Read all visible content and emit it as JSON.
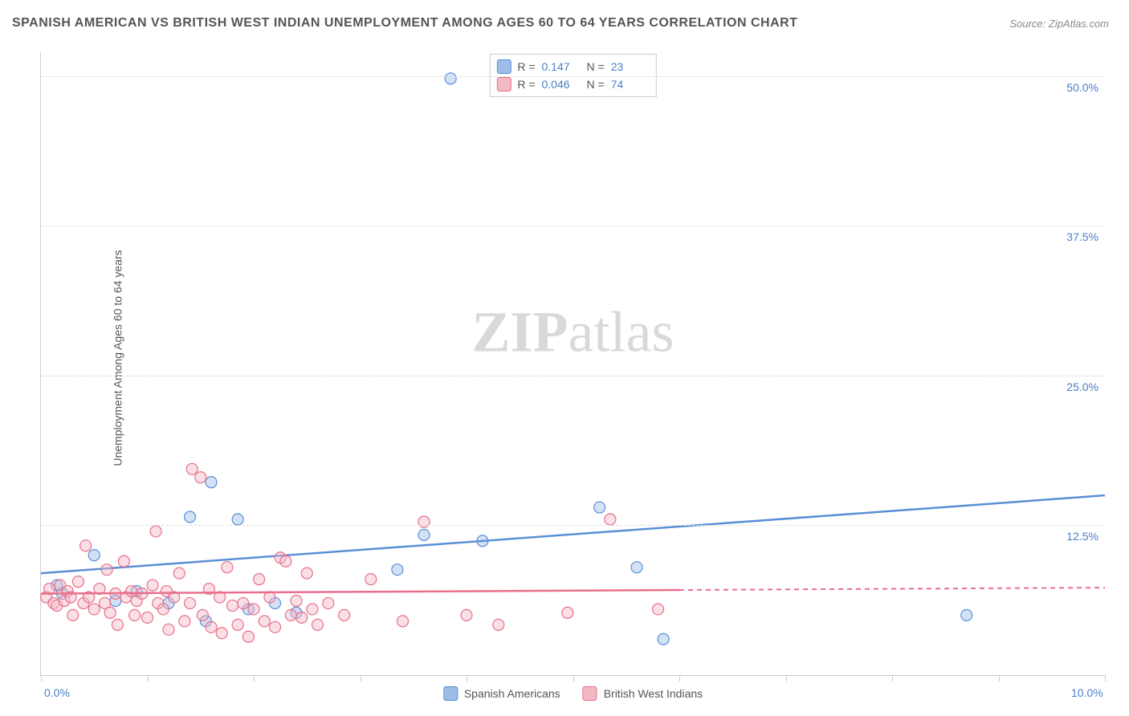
{
  "title": "SPANISH AMERICAN VS BRITISH WEST INDIAN UNEMPLOYMENT AMONG AGES 60 TO 64 YEARS CORRELATION CHART",
  "source": "Source: ZipAtlas.com",
  "watermark_bold": "ZIP",
  "watermark_light": "atlas",
  "ylabel": "Unemployment Among Ages 60 to 64 years",
  "chart": {
    "type": "scatter",
    "background_color": "#ffffff",
    "grid_color": "#dddddd",
    "axis_color": "#cccccc",
    "label_color": "#4a7ec9",
    "text_color": "#555555",
    "title_fontsize": 16,
    "label_fontsize": 14,
    "xlim": [
      0,
      10
    ],
    "ylim": [
      0,
      52
    ],
    "xtick_labels": [
      {
        "v": 0,
        "label": "0.0%"
      },
      {
        "v": 10,
        "label": "10.0%"
      }
    ],
    "xtick_positions": [
      0,
      1,
      2,
      3,
      4,
      5,
      6,
      7,
      8,
      9,
      10
    ],
    "ytick_gridlines": [
      12.5,
      25.0,
      37.5,
      50.0
    ],
    "ytick_labels": [
      {
        "v": 12.5,
        "label": "12.5%"
      },
      {
        "v": 25.0,
        "label": "25.0%"
      },
      {
        "v": 37.5,
        "label": "37.5%"
      },
      {
        "v": 50.0,
        "label": "50.0%"
      }
    ],
    "marker_radius": 7,
    "marker_opacity": 0.45,
    "series": [
      {
        "key": "spanish",
        "name": "Spanish Americans",
        "color_fill": "#9dbce8",
        "color_stroke": "#5a8fd6",
        "R": "0.147",
        "N": "23",
        "trend": {
          "x0": 0,
          "y0": 8.5,
          "x1": 10,
          "y1": 15.0,
          "dash_from_x": null
        },
        "points": [
          [
            0.15,
            7.5
          ],
          [
            0.2,
            6.8
          ],
          [
            0.5,
            10.0
          ],
          [
            0.7,
            6.2
          ],
          [
            0.9,
            7.0
          ],
          [
            1.2,
            6.0
          ],
          [
            1.4,
            13.2
          ],
          [
            1.55,
            4.5
          ],
          [
            1.6,
            16.1
          ],
          [
            1.85,
            13.0
          ],
          [
            1.95,
            5.5
          ],
          [
            2.2,
            6.0
          ],
          [
            2.4,
            5.2
          ],
          [
            3.35,
            8.8
          ],
          [
            3.6,
            11.7
          ],
          [
            3.85,
            49.8
          ],
          [
            4.15,
            11.2
          ],
          [
            5.25,
            14.0
          ],
          [
            5.6,
            9.0
          ],
          [
            5.85,
            3.0
          ],
          [
            8.7,
            5.0
          ]
        ]
      },
      {
        "key": "bwi",
        "name": "British West Indians",
        "color_fill": "#f4b7c4",
        "color_stroke": "#e86f8c",
        "R": "0.046",
        "N": "74",
        "trend": {
          "x0": 0,
          "y0": 6.8,
          "x1": 10,
          "y1": 7.3,
          "dash_from_x": 6.0
        },
        "points": [
          [
            0.05,
            6.5
          ],
          [
            0.08,
            7.2
          ],
          [
            0.12,
            6.0
          ],
          [
            0.15,
            5.8
          ],
          [
            0.18,
            7.5
          ],
          [
            0.22,
            6.2
          ],
          [
            0.25,
            7.0
          ],
          [
            0.28,
            6.5
          ],
          [
            0.3,
            5.0
          ],
          [
            0.35,
            7.8
          ],
          [
            0.4,
            6.0
          ],
          [
            0.42,
            10.8
          ],
          [
            0.45,
            6.5
          ],
          [
            0.5,
            5.5
          ],
          [
            0.55,
            7.2
          ],
          [
            0.6,
            6.0
          ],
          [
            0.62,
            8.8
          ],
          [
            0.65,
            5.2
          ],
          [
            0.7,
            6.8
          ],
          [
            0.72,
            4.2
          ],
          [
            0.78,
            9.5
          ],
          [
            0.8,
            6.5
          ],
          [
            0.85,
            7.0
          ],
          [
            0.88,
            5.0
          ],
          [
            0.9,
            6.2
          ],
          [
            0.95,
            6.8
          ],
          [
            1.0,
            4.8
          ],
          [
            1.05,
            7.5
          ],
          [
            1.08,
            12.0
          ],
          [
            1.1,
            6.0
          ],
          [
            1.15,
            5.5
          ],
          [
            1.18,
            7.0
          ],
          [
            1.2,
            3.8
          ],
          [
            1.25,
            6.5
          ],
          [
            1.3,
            8.5
          ],
          [
            1.35,
            4.5
          ],
          [
            1.4,
            6.0
          ],
          [
            1.42,
            17.2
          ],
          [
            1.5,
            16.5
          ],
          [
            1.52,
            5.0
          ],
          [
            1.58,
            7.2
          ],
          [
            1.6,
            4.0
          ],
          [
            1.68,
            6.5
          ],
          [
            1.7,
            3.5
          ],
          [
            1.75,
            9.0
          ],
          [
            1.8,
            5.8
          ],
          [
            1.85,
            4.2
          ],
          [
            1.9,
            6.0
          ],
          [
            1.95,
            3.2
          ],
          [
            2.0,
            5.5
          ],
          [
            2.05,
            8.0
          ],
          [
            2.1,
            4.5
          ],
          [
            2.15,
            6.5
          ],
          [
            2.2,
            4.0
          ],
          [
            2.25,
            9.8
          ],
          [
            2.3,
            9.5
          ],
          [
            2.35,
            5.0
          ],
          [
            2.4,
            6.2
          ],
          [
            2.45,
            4.8
          ],
          [
            2.5,
            8.5
          ],
          [
            2.55,
            5.5
          ],
          [
            2.6,
            4.2
          ],
          [
            2.7,
            6.0
          ],
          [
            2.85,
            5.0
          ],
          [
            3.1,
            8.0
          ],
          [
            3.4,
            4.5
          ],
          [
            3.6,
            12.8
          ],
          [
            4.0,
            5.0
          ],
          [
            4.3,
            4.2
          ],
          [
            4.95,
            5.2
          ],
          [
            5.35,
            13.0
          ],
          [
            5.8,
            5.5
          ]
        ]
      }
    ]
  },
  "stats_box": {
    "label_R": "R =",
    "label_N": "N ="
  },
  "legend": {
    "items": [
      "spanish",
      "bwi"
    ]
  }
}
